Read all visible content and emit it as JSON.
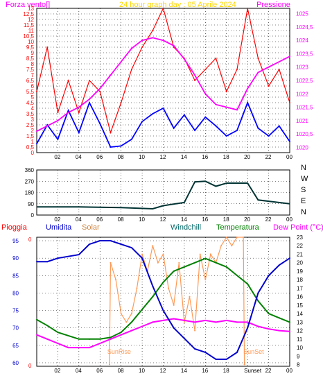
{
  "header": {
    "left_label": "Forza vento[]",
    "title": "24 hour graph day : 05 Aprile 2024",
    "right_label": "Pressione"
  },
  "colors": {
    "wind": "#ff0000",
    "wind_avg": "#0000ff",
    "pressure": "#ff00ff",
    "title": "#ffd700",
    "direction": "#003333",
    "humidity": "#0000cc",
    "solar": "#ff9955",
    "windchill": "#006666",
    "temperature": "#008000",
    "dewpoint": "#ff00ff",
    "rain": "#ff0000",
    "grid": "#000000",
    "frame_bg": "#ffffff"
  },
  "chart_data": [
    {
      "type": "line",
      "name_id": "wind-pressure",
      "x_ticks": [
        "02",
        "04",
        "06",
        "08",
        "10",
        "12",
        "14",
        "16",
        "18",
        "20",
        "22",
        "00"
      ],
      "y_left_ticks": [
        "0",
        "0,5",
        "1",
        "1,5",
        "2",
        "2,5",
        "3",
        "3,5",
        "4",
        "4,5",
        "5",
        "5,5",
        "6",
        "6,5",
        "7",
        "7,5",
        "8",
        "8,5",
        "9",
        "9,5",
        "10",
        "10,5",
        "11",
        "11,5",
        "12",
        "12,5",
        "13"
      ],
      "y_left_range": [
        0,
        13
      ],
      "y_right_ticks": [
        "1020",
        "1020,5",
        "1021",
        "1021,5",
        "1022",
        "1022,5",
        "1023",
        "1023,5",
        "1024",
        "1024,5",
        "1025"
      ],
      "y_right_range": [
        1019.8,
        1025.2
      ],
      "series": [
        {
          "role": "pressure",
          "x": [
            0,
            1,
            2,
            3,
            4,
            5,
            6,
            7,
            8,
            9,
            10,
            11,
            12,
            13,
            14,
            15,
            16,
            17,
            18,
            19,
            20,
            21,
            22,
            23,
            24
          ],
          "values": [
            1020.6,
            1020.8,
            1021.0,
            1021.3,
            1021.5,
            1021.8,
            1022.2,
            1022.7,
            1023.2,
            1023.7,
            1024.0,
            1024.1,
            1024.0,
            1023.8,
            1023.3,
            1022.7,
            1022.0,
            1021.6,
            1021.5,
            1021.4,
            1022.2,
            1022.8,
            1023.0,
            1023.2,
            1023.4
          ]
        },
        {
          "role": "wind_avg",
          "x": [
            0,
            1,
            2,
            3,
            4,
            5,
            6,
            7,
            8,
            9,
            10,
            11,
            12,
            13,
            14,
            15,
            16,
            17,
            18,
            19,
            20,
            21,
            22,
            23,
            24
          ],
          "values": [
            0.8,
            2.5,
            1.2,
            3.8,
            1.8,
            4.5,
            2.6,
            0.5,
            0.6,
            1.2,
            2.8,
            3.5,
            4.0,
            2.2,
            3.4,
            2.0,
            3.2,
            2.4,
            1.5,
            2.0,
            4.5,
            2.2,
            1.5,
            2.4,
            1.0
          ]
        },
        {
          "role": "wind",
          "x": [
            0,
            1,
            2,
            3,
            4,
            5,
            6,
            7,
            8,
            9,
            10,
            11,
            12,
            13,
            14,
            15,
            16,
            17,
            18,
            19,
            20,
            21,
            22,
            23,
            24
          ],
          "values": [
            5.5,
            9.5,
            3.6,
            6.5,
            3.6,
            6.5,
            5.5,
            1.8,
            4.5,
            7.5,
            9.5,
            11.0,
            13.0,
            9.5,
            8.5,
            6.5,
            7.5,
            8.5,
            5.5,
            7.5,
            13.0,
            8.5,
            6.0,
            7.5,
            4.5
          ]
        }
      ]
    },
    {
      "type": "line",
      "name_id": "wind-direction",
      "x_ticks": [
        "02",
        "04",
        "06",
        "08",
        "10",
        "12",
        "14",
        "16",
        "18",
        "20",
        "22",
        "00"
      ],
      "y_left_ticks": [
        "0",
        "90",
        "180",
        "270",
        "360"
      ],
      "y_left_range": [
        0,
        360
      ],
      "y_right_ticks": [
        "N",
        "W",
        "S",
        "E",
        "N"
      ],
      "series": [
        {
          "role": "direction",
          "x": [
            0,
            4,
            8,
            11,
            12,
            14,
            15,
            16,
            17,
            18,
            20,
            21,
            22,
            24
          ],
          "values": [
            65,
            65,
            60,
            50,
            75,
            100,
            265,
            270,
            230,
            255,
            255,
            120,
            110,
            90
          ]
        }
      ]
    },
    {
      "type": "line",
      "name_id": "multi-weather",
      "legend": [
        "Pioggia",
        "Umidita",
        "Solar",
        "Windchill",
        "Temperatura",
        "Dew Point (°C)"
      ],
      "x_ticks": [
        "02",
        "04",
        "06",
        "08",
        "10",
        "12",
        "14",
        "16",
        "18",
        "Sunset",
        "22",
        "00"
      ],
      "annotations": [
        "SunRise",
        "SunSet"
      ],
      "y_left_ticks": [
        "60",
        "65",
        "70",
        "75",
        "80",
        "85",
        "90",
        "95"
      ],
      "y_left_range": [
        59,
        96
      ],
      "y_right_ticks": [
        "8",
        "9",
        "10",
        "11",
        "12",
        "13",
        "14",
        "15",
        "16",
        "17",
        "18",
        "19",
        "20",
        "21",
        "22",
        "23"
      ],
      "y_right_range": [
        7.8,
        23
      ],
      "series": [
        {
          "role": "humidity",
          "x": [
            0,
            1,
            2,
            4,
            5,
            6,
            7,
            8,
            9,
            10,
            11,
            12,
            13,
            14,
            15,
            16,
            17,
            18,
            19,
            20,
            21,
            22,
            23,
            24
          ],
          "values": [
            89,
            89,
            90,
            91,
            94,
            95,
            95,
            94,
            93,
            90,
            82,
            75,
            70,
            67,
            64,
            63,
            61,
            61,
            63,
            70,
            80,
            85,
            88,
            90
          ]
        },
        {
          "role": "temperature",
          "x": [
            0,
            1,
            2,
            4,
            5,
            6,
            7,
            8,
            9,
            10,
            11,
            12,
            13,
            14,
            15,
            16,
            17,
            18,
            19,
            20,
            21,
            22,
            23,
            24
          ],
          "values": [
            13.3,
            12.6,
            11.8,
            11.0,
            11.0,
            11.0,
            11.2,
            11.8,
            13.0,
            14.5,
            16.0,
            17.7,
            19.0,
            19.5,
            20.0,
            20.5,
            20.0,
            19.5,
            18.5,
            17.5,
            15.5,
            14.0,
            13.5,
            13.0
          ]
        },
        {
          "role": "dewpoint",
          "x": [
            0,
            1,
            2,
            3,
            4,
            5,
            6,
            7,
            8,
            9,
            10,
            11,
            12,
            13,
            14,
            15,
            16,
            17,
            18,
            19,
            20,
            21,
            22,
            23,
            24
          ],
          "values": [
            11.5,
            11.0,
            10.5,
            10.0,
            10.0,
            10.0,
            10.5,
            11.0,
            11.5,
            12.0,
            12.5,
            13.0,
            13.2,
            13.4,
            13.2,
            13.0,
            13.2,
            13.0,
            13.2,
            13.0,
            13.0,
            12.5,
            12.2,
            12.0,
            11.9
          ]
        },
        {
          "role": "solar",
          "x": [
            6.9,
            7,
            7.5,
            8,
            8.5,
            9,
            9.5,
            10,
            10.5,
            11,
            11.5,
            12,
            12.5,
            13,
            13.5,
            14,
            14.5,
            15,
            15.5,
            16,
            16.5,
            17,
            17.5,
            18,
            18.5,
            19,
            19.6,
            19.7
          ],
          "values": [
            8,
            20,
            18,
            14,
            13,
            14,
            17,
            21,
            19,
            22,
            20,
            21,
            17,
            15,
            20,
            13,
            16,
            12,
            21,
            18,
            21,
            20,
            22,
            23,
            22,
            23,
            23,
            8
          ]
        }
      ]
    }
  ]
}
